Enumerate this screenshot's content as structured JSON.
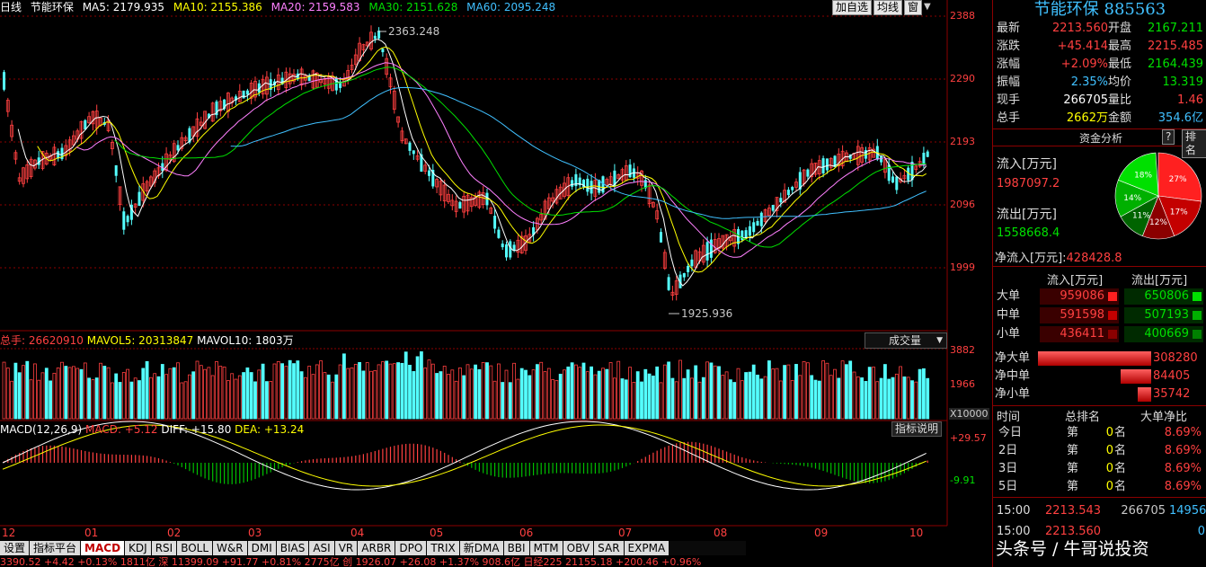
{
  "header": {
    "chart_label": "日线",
    "sector_name": "节能环保",
    "ma5": "MA5: 2179.935",
    "ma10": "MA10: 2155.386",
    "ma20": "MA20: 2159.583",
    "ma30": "MA30: 2151.628",
    "ma60": "MA60: 2095.248",
    "buttons": [
      "加自选",
      "均线",
      "窗"
    ]
  },
  "price_axis": [
    "2388",
    "2290",
    "2193",
    "2096",
    "1999"
  ],
  "annotations": {
    "high": "2363.248",
    "low": "1925.936"
  },
  "volume": {
    "label_total": "总手: 26620910",
    "label_mavol5": "MAVOL5: 20313847",
    "label_mavol10": "MAVOL10: 1803万",
    "selector": "成交量",
    "axis": [
      "3882",
      "1966"
    ],
    "unit": "X10000"
  },
  "macd": {
    "label_name": "MACD(12,26,9)",
    "label_macd": "MACD: +5.12",
    "label_diff": "DIFF: +15.80",
    "label_dea": "DEA: +13.24",
    "help_button": "指标说明",
    "axis": [
      "+29.57",
      "-9.91"
    ]
  },
  "months": [
    "12",
    "01",
    "02",
    "03",
    "04",
    "05",
    "06",
    "07",
    "08",
    "09",
    "10"
  ],
  "tabs": [
    "设置",
    "指标平台",
    "MACD",
    "KDJ",
    "RSI",
    "BOLL",
    "W&R",
    "DMI",
    "BIAS",
    "ASI",
    "VR",
    "ARBR",
    "DPO",
    "TRIX",
    "新DMA",
    "BBI",
    "MTM",
    "OBV",
    "SAR",
    "EXPMA"
  ],
  "active_tab": "MACD",
  "ticker_text": "3390.52  +4.42  +0.13%  1811亿  深  11399.09  +91.77  +0.81%  2775亿  创  1926.07  +26.08  +1.37%  908.6亿  日经225  21155.18  +200.46  +0.96%",
  "panel": {
    "title_name": "节能环保",
    "title_code": "885563",
    "quote": [
      {
        "l1": "最新",
        "v1": "2213.560",
        "l2": "开盘",
        "v2": "2167.211"
      },
      {
        "l1": "涨跌",
        "v1": "+45.414",
        "l2": "最高",
        "v2": "2215.485"
      },
      {
        "l1": "涨幅",
        "v1": "+2.09%",
        "l2": "最低",
        "v2": "2164.439"
      },
      {
        "l1": "振幅",
        "v1": "2.35%",
        "l2": "均价",
        "v2": "13.319"
      },
      {
        "l1": "现手",
        "v1": "266705",
        "l2": "量比",
        "v2": "1.46"
      },
      {
        "l1": "总手",
        "v1": "2662万",
        "l2": "金额",
        "v2": "354.6亿"
      }
    ],
    "fund_analysis": "资金分析",
    "help": "?",
    "rank": "排名",
    "inflow_label": "流入[万元]",
    "inflow_value": "1987097.2",
    "outflow_label": "流出[万元]",
    "outflow_value": "1558668.4",
    "net_label": "净流入[万元]:",
    "net_value": "428428.8",
    "pie": {
      "slices": [
        {
          "label": "27%",
          "value": 27,
          "color": "#ff2020"
        },
        {
          "label": "17%",
          "value": 17,
          "color": "#c40000"
        },
        {
          "label": "12%",
          "value": 12,
          "color": "#8b0000"
        },
        {
          "label": "11%",
          "value": 11,
          "color": "#006400"
        },
        {
          "label": "14%",
          "value": 14,
          "color": "#00b000"
        },
        {
          "label": "18%",
          "value": 18,
          "color": "#00e000"
        }
      ]
    },
    "flow_header": {
      "in": "流入[万元]",
      "out": "流出[万元]"
    },
    "flows": [
      {
        "label": "大单",
        "in": "959086",
        "out": "650806"
      },
      {
        "label": "中单",
        "in": "591598",
        "out": "507193"
      },
      {
        "label": "小单",
        "in": "436411",
        "out": "400669"
      }
    ],
    "nets": [
      {
        "label": "净大单",
        "value": "308280",
        "ratio": 1.0
      },
      {
        "label": "净中单",
        "value": "84405",
        "ratio": 0.27
      },
      {
        "label": "净小单",
        "value": "35742",
        "ratio": 0.12
      }
    ],
    "rank_header": {
      "time": "时间",
      "rank": "总排名",
      "big": "大单净比"
    },
    "ranks": [
      {
        "day": "今日",
        "di": "第",
        "n": "0",
        "ming": "名",
        "pct": "8.69%"
      },
      {
        "day": "2日",
        "di": "第",
        "n": "0",
        "ming": "名",
        "pct": "8.69%"
      },
      {
        "day": "3日",
        "di": "第",
        "n": "0",
        "ming": "名",
        "pct": "8.69%"
      },
      {
        "day": "5日",
        "di": "第",
        "n": "0",
        "ming": "名",
        "pct": "8.69%"
      }
    ],
    "ticks": [
      {
        "time": "15:00",
        "price": "2213.543",
        "vol": "266705",
        "extra": "14956"
      },
      {
        "time": "15:00",
        "price": "2213.560",
        "vol": "",
        "extra": "0"
      }
    ]
  },
  "watermark": "头条号 / 牛哥说投资",
  "colors": {
    "up": "#ff4040",
    "down": "#54ffff",
    "ma5": "#ffffff",
    "ma10": "#ffff00",
    "ma20": "#ff80ff",
    "ma30": "#00e000",
    "ma60": "#40c0ff"
  }
}
